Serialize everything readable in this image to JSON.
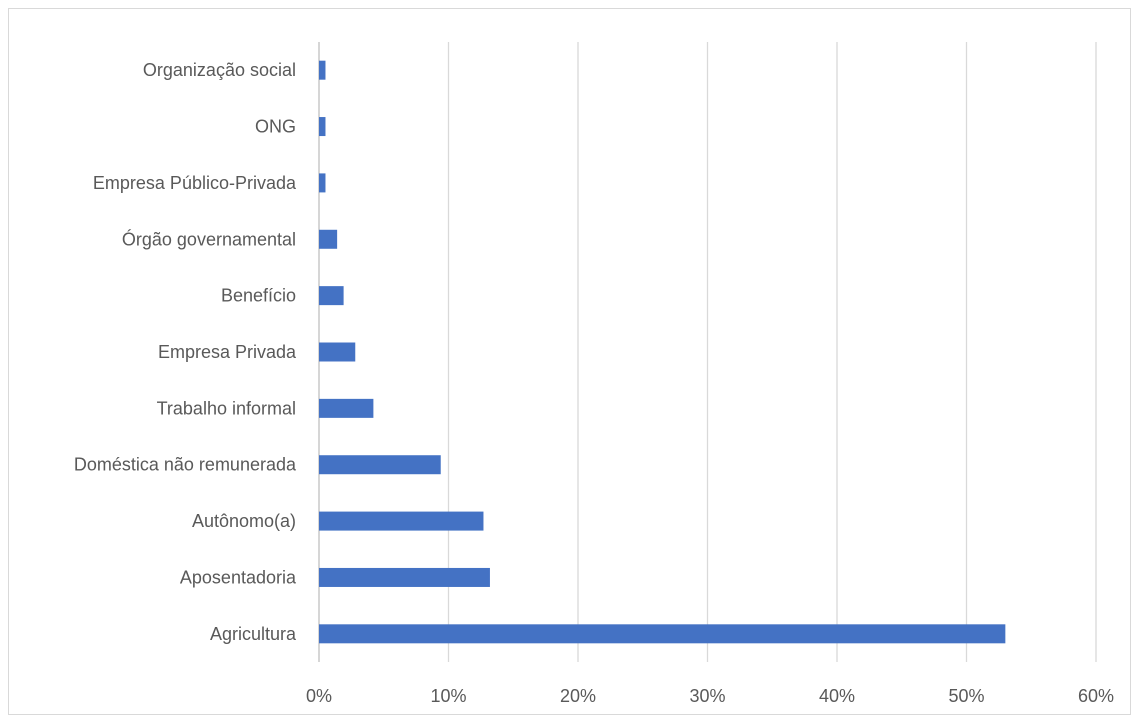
{
  "chart_data": {
    "type": "bar",
    "orientation": "horizontal",
    "categories": [
      "Organização social",
      "ONG",
      "Empresa Público-Privada",
      "Órgão governamental",
      "Benefício",
      "Empresa Privada",
      "Trabalho informal",
      "Doméstica não remunerada",
      "Autônomo(a)",
      "Aposentadoria",
      "Agricultura"
    ],
    "values": [
      0.5,
      0.5,
      0.5,
      1.4,
      1.9,
      2.8,
      4.2,
      9.4,
      12.7,
      13.2,
      53.0
    ],
    "xlim": [
      0,
      60
    ],
    "x_ticks": [
      "0%",
      "10%",
      "20%",
      "30%",
      "40%",
      "50%",
      "60%"
    ],
    "grid": true,
    "bar_color": "#4472c4",
    "grid_color": "#d9d9d9",
    "title": "",
    "xlabel": "",
    "ylabel": ""
  }
}
